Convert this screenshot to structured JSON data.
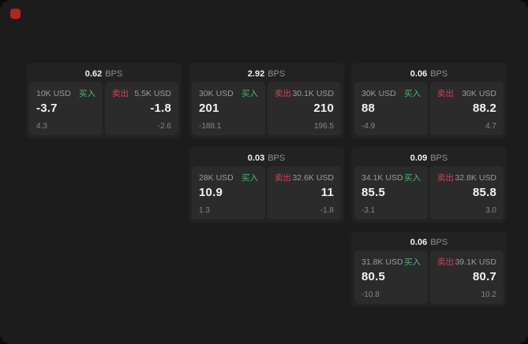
{
  "colors": {
    "canvas": "#1c1c1c",
    "card": "#222222",
    "panel": "#2b2b2b",
    "buy_green": "#4cb673",
    "sell_red": "#c8455c",
    "record_dot_red": "#b3261e"
  },
  "icons": {
    "record_dot": "record-indicator"
  },
  "labels": {
    "bps": "BPS",
    "buy": "买入",
    "sell": "卖出"
  },
  "cards": [
    {
      "bps": "0.62",
      "buy": {
        "amount": "10K USD",
        "price": "-3.7",
        "sub": "4.3"
      },
      "sell": {
        "amount": "5.5K USD",
        "price": "-1.8",
        "sub": "-2.6"
      }
    },
    {
      "bps": "2.92",
      "buy": {
        "amount": "30K USD",
        "price": "201",
        "sub": "-188.1"
      },
      "sell": {
        "amount": "30.1K USD",
        "price": "210",
        "sub": "196.5"
      }
    },
    {
      "bps": "0.06",
      "buy": {
        "amount": "30K USD",
        "price": "88",
        "sub": "-4.9"
      },
      "sell": {
        "amount": "30K USD",
        "price": "88.2",
        "sub": "4.7"
      }
    },
    {
      "bps": "0.03",
      "buy": {
        "amount": "28K USD",
        "price": "10.9",
        "sub": "1.3"
      },
      "sell": {
        "amount": "32.6K USD",
        "price": "11",
        "sub": "-1.8"
      }
    },
    {
      "bps": "0.09",
      "buy": {
        "amount": "34.1K USD",
        "price": "85.5",
        "sub": "-3.1"
      },
      "sell": {
        "amount": "32.8K USD",
        "price": "85.8",
        "sub": "3.0"
      }
    },
    {
      "bps": "0.06",
      "buy": {
        "amount": "31.8K USD",
        "price": "80.5",
        "sub": "-10.8"
      },
      "sell": {
        "amount": "39.1K USD",
        "price": "80.7",
        "sub": "10.2"
      }
    }
  ]
}
